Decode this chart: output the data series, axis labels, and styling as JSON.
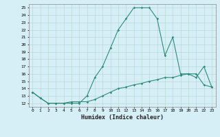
{
  "title": "",
  "xlabel": "Humidex (Indice chaleur)",
  "x": [
    0,
    1,
    2,
    3,
    4,
    5,
    6,
    7,
    8,
    9,
    10,
    11,
    12,
    13,
    14,
    15,
    16,
    17,
    18,
    19,
    20,
    21,
    22,
    23
  ],
  "line1": [
    13.5,
    12.7,
    12.0,
    12.0,
    12.0,
    12.0,
    12.0,
    13.0,
    15.5,
    17.0,
    19.5,
    22.0,
    23.5,
    25.0,
    25.0,
    25.0,
    23.5,
    18.5,
    21.0,
    16.0,
    16.0,
    15.5,
    17.0,
    14.2
  ],
  "line2": [
    13.5,
    12.7,
    12.0,
    12.0,
    12.0,
    12.2,
    12.2,
    12.2,
    12.5,
    13.0,
    13.5,
    14.0,
    14.2,
    14.5,
    14.7,
    15.0,
    15.2,
    15.5,
    15.5,
    15.8,
    16.0,
    16.0,
    14.5,
    14.2
  ],
  "yticks": [
    12,
    13,
    14,
    15,
    16,
    17,
    18,
    19,
    20,
    21,
    22,
    23,
    24,
    25
  ],
  "line_color": "#2d8b7a",
  "bg_color": "#d6eef5",
  "grid_color": "#b0d4cc"
}
